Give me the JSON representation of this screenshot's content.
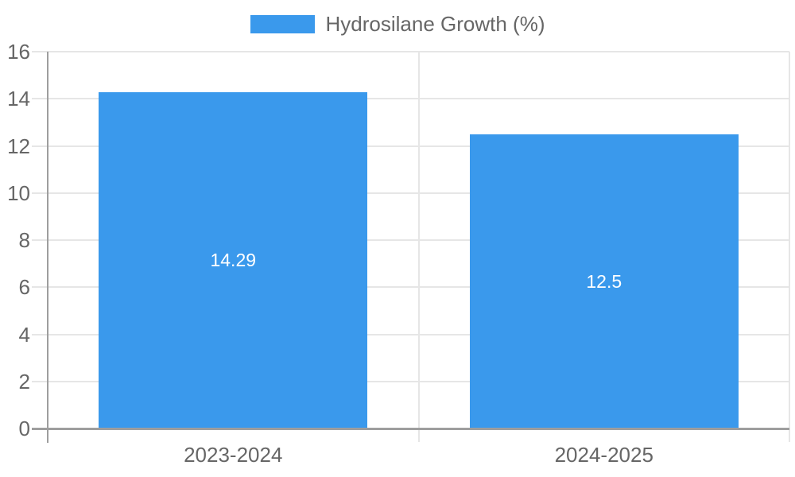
{
  "chart_data": {
    "type": "bar",
    "title": "",
    "legend": {
      "label": "Hydrosilane Growth (%)",
      "position": "top"
    },
    "categories": [
      "2023-2024",
      "2024-2025"
    ],
    "series": [
      {
        "name": "Hydrosilane Growth (%)",
        "values": [
          14.29,
          12.5
        ],
        "data_labels": [
          "14.29",
          "12.5"
        ]
      }
    ],
    "xlabel": "",
    "ylabel": "",
    "ylim": [
      0,
      16
    ],
    "yticks": [
      "0",
      "2",
      "4",
      "6",
      "8",
      "10",
      "12",
      "14",
      "16"
    ],
    "grid": true,
    "colors": {
      "bar": "#3a99ec",
      "grid": "#e6e6e6",
      "axis": "#9e9e9e",
      "text": "#666666",
      "bar_label": "#ffffff"
    }
  }
}
